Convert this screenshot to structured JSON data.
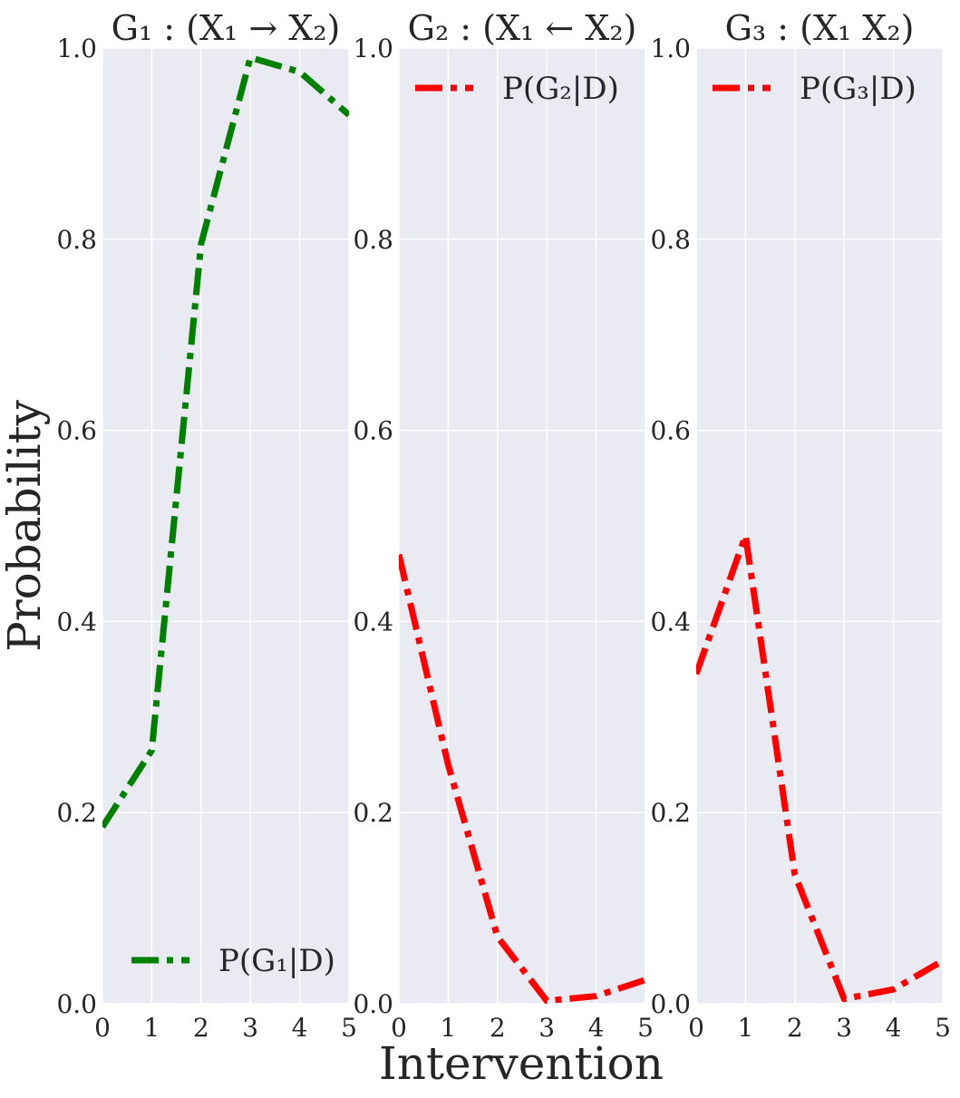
{
  "figure": {
    "ylabel": "Probability",
    "xlabel": "Intervention"
  },
  "chart_data": [
    {
      "type": "line",
      "title": "G₁ : (X₁ → X₂)",
      "x": [
        0,
        1,
        2,
        3,
        4,
        5
      ],
      "series": [
        {
          "name": "P(G₁|D)",
          "values": [
            0.185,
            0.265,
            0.795,
            0.99,
            0.975,
            0.93
          ],
          "color": "#008000"
        }
      ],
      "xlim": [
        0,
        5
      ],
      "ylim": [
        0,
        1
      ],
      "xticks": [
        "0",
        "1",
        "2",
        "3",
        "4",
        "5"
      ],
      "yticks": [
        "0.0",
        "0.2",
        "0.4",
        "0.6",
        "0.8",
        "1.0"
      ],
      "line_style": "dash-dot",
      "grid": true,
      "legend_position": "lower-right"
    },
    {
      "type": "line",
      "title": "G₂ : (X₁ ← X₂)",
      "x": [
        0,
        1,
        2,
        3,
        4,
        5
      ],
      "series": [
        {
          "name": "P(G₂|D)",
          "values": [
            0.47,
            0.25,
            0.07,
            0.003,
            0.008,
            0.025
          ],
          "color": "#ff0000"
        }
      ],
      "xlim": [
        0,
        5
      ],
      "ylim": [
        0,
        1
      ],
      "xticks": [
        "0",
        "1",
        "2",
        "3",
        "4",
        "5"
      ],
      "yticks": [
        "0.0",
        "0.2",
        "0.4",
        "0.6",
        "0.8",
        "1.0"
      ],
      "line_style": "dash-dot",
      "grid": true,
      "legend_position": "upper-left"
    },
    {
      "type": "line",
      "title": "G₃ : (X₁ X₂)",
      "x": [
        0,
        1,
        2,
        3,
        4,
        5
      ],
      "series": [
        {
          "name": "P(G₃|D)",
          "values": [
            0.345,
            0.49,
            0.135,
            0.005,
            0.015,
            0.045
          ],
          "color": "#ff0000"
        }
      ],
      "xlim": [
        0,
        5
      ],
      "ylim": [
        0,
        1
      ],
      "xticks": [
        "0",
        "1",
        "2",
        "3",
        "4",
        "5"
      ],
      "yticks": [
        "0.0",
        "0.2",
        "0.4",
        "0.6",
        "0.8",
        "1.0"
      ],
      "line_style": "dash-dot",
      "grid": true,
      "legend_position": "upper-left"
    }
  ],
  "colors": {
    "panel_background": "#eaeaf2",
    "grid": "#ffffff",
    "text": "#262626"
  }
}
